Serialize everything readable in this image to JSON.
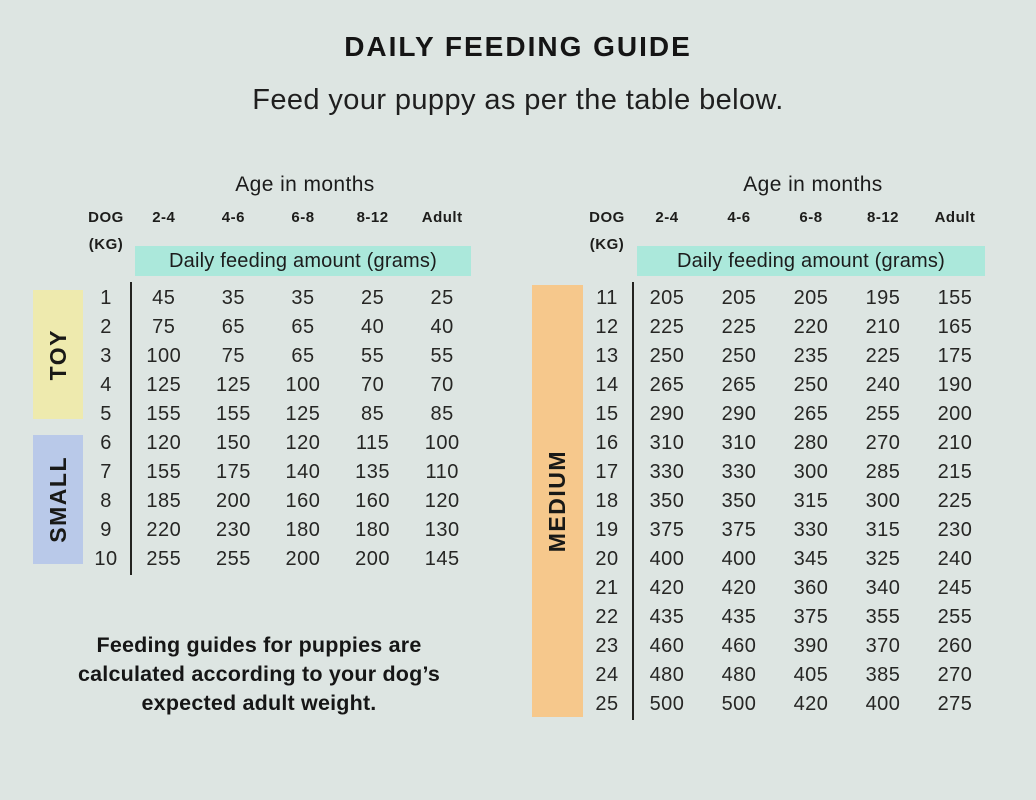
{
  "header": {
    "title": "DAILY FEEDING GUIDE",
    "subtitle": "Feed your puppy as per the table below."
  },
  "footer": {
    "note": "Feeding guides for puppies are calculated according to your dog’s expected adult weight."
  },
  "colors": {
    "background": "#dde5e2",
    "amount_highlight_teal": "#abe8db",
    "toy_yellow": "#eeeaae",
    "small_blue": "#b9c9e9",
    "medium_orange": "#f6c88c",
    "text": "#1d1d1b"
  },
  "chart_data": [
    {
      "type": "table",
      "age_header": "Age in months",
      "dog_label": "DOG",
      "kg_label": "(KG)",
      "age_columns": [
        "2-4",
        "4-6",
        "6-8",
        "8-12",
        "Adult"
      ],
      "amount_header": "Daily feeding amount (grams)",
      "groups": [
        {
          "label": "TOY",
          "color": "#eeeaae",
          "rows": [
            {
              "kg": 1,
              "values": [
                45,
                35,
                35,
                25,
                25
              ]
            },
            {
              "kg": 2,
              "values": [
                75,
                65,
                65,
                40,
                40
              ]
            },
            {
              "kg": 3,
              "values": [
                100,
                75,
                65,
                55,
                55
              ]
            },
            {
              "kg": 4,
              "values": [
                125,
                125,
                100,
                70,
                70
              ]
            },
            {
              "kg": 5,
              "values": [
                155,
                155,
                125,
                85,
                85
              ]
            }
          ]
        },
        {
          "label": "SMALL",
          "color": "#b9c9e9",
          "rows": [
            {
              "kg": 6,
              "values": [
                120,
                150,
                120,
                115,
                100
              ]
            },
            {
              "kg": 7,
              "values": [
                155,
                175,
                140,
                135,
                110
              ]
            },
            {
              "kg": 8,
              "values": [
                185,
                200,
                160,
                160,
                120
              ]
            },
            {
              "kg": 9,
              "values": [
                220,
                230,
                180,
                180,
                130
              ]
            },
            {
              "kg": 10,
              "values": [
                255,
                255,
                200,
                200,
                145
              ]
            }
          ]
        }
      ]
    },
    {
      "type": "table",
      "age_header": "Age in months",
      "dog_label": "DOG",
      "kg_label": "(KG)",
      "age_columns": [
        "2-4",
        "4-6",
        "6-8",
        "8-12",
        "Adult"
      ],
      "amount_header": "Daily feeding amount (grams)",
      "groups": [
        {
          "label": "MEDIUM",
          "color": "#f6c88c",
          "rows": [
            {
              "kg": 11,
              "values": [
                205,
                205,
                205,
                195,
                155
              ]
            },
            {
              "kg": 12,
              "values": [
                225,
                225,
                220,
                210,
                165
              ]
            },
            {
              "kg": 13,
              "values": [
                250,
                250,
                235,
                225,
                175
              ]
            },
            {
              "kg": 14,
              "values": [
                265,
                265,
                250,
                240,
                190
              ]
            },
            {
              "kg": 15,
              "values": [
                290,
                290,
                265,
                255,
                200
              ]
            },
            {
              "kg": 16,
              "values": [
                310,
                310,
                280,
                270,
                210
              ]
            },
            {
              "kg": 17,
              "values": [
                330,
                330,
                300,
                285,
                215
              ]
            },
            {
              "kg": 18,
              "values": [
                350,
                350,
                315,
                300,
                225
              ]
            },
            {
              "kg": 19,
              "values": [
                375,
                375,
                330,
                315,
                230
              ]
            },
            {
              "kg": 20,
              "values": [
                400,
                400,
                345,
                325,
                240
              ]
            },
            {
              "kg": 21,
              "values": [
                420,
                420,
                360,
                340,
                245
              ]
            },
            {
              "kg": 22,
              "values": [
                435,
                435,
                375,
                355,
                255
              ]
            },
            {
              "kg": 23,
              "values": [
                460,
                460,
                390,
                370,
                260
              ]
            },
            {
              "kg": 24,
              "values": [
                480,
                480,
                405,
                385,
                270
              ]
            },
            {
              "kg": 25,
              "values": [
                500,
                500,
                420,
                400,
                275
              ]
            }
          ]
        }
      ]
    }
  ]
}
